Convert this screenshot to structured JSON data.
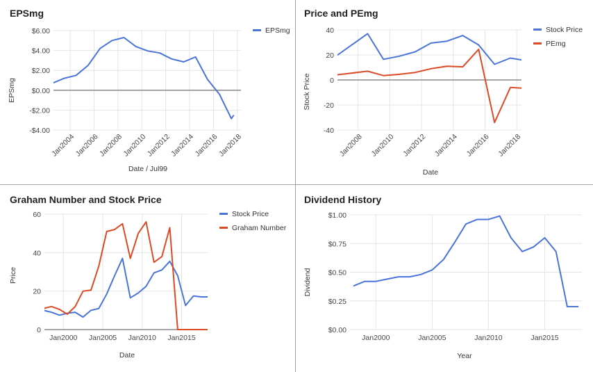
{
  "colors": {
    "blue": "#4a74d7",
    "red": "#db4a27",
    "grid": "#e4e4e4",
    "zero": "#8a8a8a"
  },
  "chart_data": [
    {
      "type": "line",
      "title": "EPSmg",
      "xlabel": "Date / Jul99",
      "ylabel": "EPSmg",
      "xlim": [
        2002.6,
        2018.3
      ],
      "ylim": [
        -4,
        6
      ],
      "yticks": [
        -4,
        -2,
        0,
        2,
        4,
        6
      ],
      "ytick_labels": [
        "-$4.00",
        "-$2.00",
        "$0.00",
        "$2.00",
        "$4.00",
        "$6.00"
      ],
      "xticks": [
        2004,
        2006,
        2008,
        2010,
        2012,
        2014,
        2016,
        2018
      ],
      "xtick_labels": [
        "Jan2004",
        "Jan2006",
        "Jan2008",
        "Jan2010",
        "Jan2012",
        "Jan2014",
        "Jan2016",
        "Jan2018"
      ],
      "xtick_rotate": true,
      "zero_line": true,
      "legend": "right",
      "series": [
        {
          "name": "EPSmg",
          "color": "#4a74d7",
          "x": [
            2002.5,
            2003.5,
            2004.5,
            2005.5,
            2006.5,
            2007.5,
            2008.5,
            2009.5,
            2010.5,
            2011.5,
            2012.5,
            2013.5,
            2014.5,
            2015.5,
            2016.5,
            2017.5,
            2017.7
          ],
          "y": [
            0.7,
            1.2,
            1.5,
            2.5,
            4.2,
            5.0,
            5.3,
            4.4,
            3.95,
            3.75,
            3.15,
            2.85,
            3.35,
            1.1,
            -0.4,
            -2.85,
            -2.5
          ]
        }
      ]
    },
    {
      "type": "line",
      "title": "Price and PEmg",
      "xlabel": "Date",
      "ylabel": "Stock Price",
      "xlim": [
        2006.7,
        2018.3
      ],
      "ylim": [
        -40,
        40
      ],
      "yticks": [
        -40,
        -20,
        0,
        20,
        40
      ],
      "ytick_labels": [
        "-40",
        "-20",
        "0",
        "20",
        "40"
      ],
      "xticks": [
        2008,
        2010,
        2012,
        2014,
        2016,
        2018
      ],
      "xtick_labels": [
        "Jan2008",
        "Jan2010",
        "Jan2012",
        "Jan2014",
        "Jan2016",
        "Jan2018"
      ],
      "xtick_rotate": true,
      "zero_line": true,
      "legend": "right",
      "series": [
        {
          "name": "Stock Price",
          "color": "#4a74d7",
          "x": [
            2006.6,
            2007.6,
            2008.6,
            2009.6,
            2010.6,
            2011.6,
            2012.6,
            2013.6,
            2014.6,
            2015.6,
            2016.6,
            2017.6,
            2018.3
          ],
          "y": [
            19,
            28,
            37,
            16.5,
            19,
            22.5,
            29.5,
            31,
            35.5,
            28,
            12.5,
            17.5,
            16
          ]
        },
        {
          "name": "PEmg",
          "color": "#db4a27",
          "x": [
            2006.6,
            2007.6,
            2008.6,
            2009.6,
            2010.6,
            2011.6,
            2012.6,
            2013.6,
            2014.6,
            2015.6,
            2016.6,
            2017.6,
            2018.3
          ],
          "y": [
            4,
            5.5,
            7,
            3.5,
            4.5,
            6,
            9,
            11,
            10.5,
            24.5,
            -34,
            -6,
            -6.5
          ]
        }
      ]
    },
    {
      "type": "line",
      "title": "Graham Number and Stock Price",
      "xlabel": "Date",
      "ylabel": "Price",
      "xlim": [
        1997.6,
        2018.3
      ],
      "ylim": [
        0,
        60
      ],
      "yticks": [
        0,
        20,
        40,
        60
      ],
      "ytick_labels": [
        "0",
        "20",
        "40",
        "60"
      ],
      "xticks": [
        2000,
        2005,
        2010,
        2015
      ],
      "xtick_labels": [
        "Jan2000",
        "Jan2005",
        "Jan2010",
        "Jan2015"
      ],
      "xtick_rotate": false,
      "zero_line": true,
      "legend": "right",
      "series": [
        {
          "name": "Stock Price",
          "color": "#4a74d7",
          "x": [
            1997.5,
            1998.5,
            1999.5,
            2000.5,
            2001.5,
            2002.5,
            2003.5,
            2004.5,
            2005.5,
            2006.5,
            2007.5,
            2008.5,
            2009.5,
            2010.5,
            2011.5,
            2012.5,
            2013.5,
            2014.5,
            2015.5,
            2016.5,
            2017.5,
            2018.3
          ],
          "y": [
            10,
            9,
            7.5,
            8.5,
            9,
            6.5,
            10,
            11,
            18.5,
            28,
            37,
            16.5,
            19,
            22.5,
            29.5,
            31,
            35.5,
            28,
            12.5,
            17.5,
            17,
            17
          ]
        },
        {
          "name": "Graham Number",
          "color": "#db4a27",
          "x": [
            1997.5,
            1998.5,
            1999.5,
            2000.5,
            2001.5,
            2002.5,
            2003.5,
            2004.5,
            2005.5,
            2006.5,
            2007.5,
            2008.5,
            2009.5,
            2010.5,
            2011.5,
            2012.5,
            2013.5,
            2014.5,
            2015.5,
            2016.5,
            2017.5,
            2018.3
          ],
          "y": [
            11,
            12,
            10.5,
            8,
            12,
            20,
            20.5,
            33,
            51,
            52,
            55,
            37,
            50,
            56,
            35,
            38,
            53,
            0,
            0,
            0,
            0,
            0
          ]
        }
      ]
    },
    {
      "type": "line",
      "title": "Dividend History",
      "xlabel": "Year",
      "ylabel": "Dividend",
      "xlim": [
        1997.7,
        2018.3
      ],
      "ylim": [
        0,
        1
      ],
      "yticks": [
        0,
        0.25,
        0.5,
        0.75,
        1
      ],
      "ytick_labels": [
        "$0.00",
        "$0.25",
        "$0.50",
        "$0.75",
        "$1.00"
      ],
      "xticks": [
        2000,
        2005,
        2010,
        2015
      ],
      "xtick_labels": [
        "Jan2000",
        "Jan2005",
        "Jan2010",
        "Jan2015"
      ],
      "xtick_rotate": false,
      "zero_line": false,
      "legend": "none",
      "series": [
        {
          "name": "",
          "color": "#4a74d7",
          "x": [
            1998,
            1999,
            2000,
            2001,
            2002,
            2003,
            2004,
            2005,
            2006,
            2007,
            2008,
            2009,
            2010,
            2011,
            2012,
            2013,
            2014,
            2015,
            2016,
            2017,
            2018
          ],
          "y": [
            0.38,
            0.42,
            0.42,
            0.44,
            0.46,
            0.46,
            0.48,
            0.52,
            0.61,
            0.76,
            0.92,
            0.96,
            0.96,
            0.99,
            0.8,
            0.68,
            0.72,
            0.8,
            0.68,
            0.2,
            0.2
          ]
        }
      ]
    }
  ]
}
